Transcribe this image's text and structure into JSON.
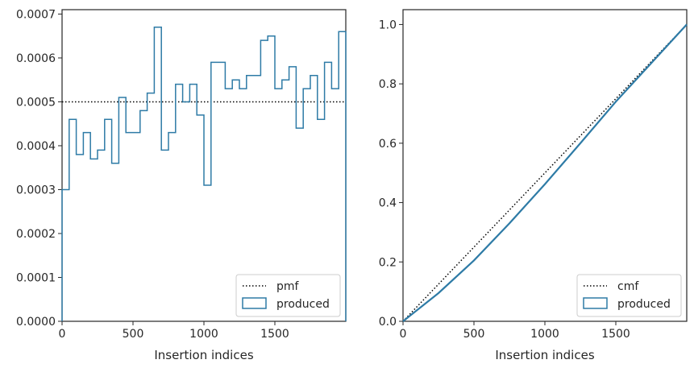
{
  "chart_data": [
    {
      "type": "step",
      "xlabel": "Insertion indices",
      "ylabel": "",
      "xlim": [
        0,
        2000
      ],
      "ylim": [
        0,
        0.00071
      ],
      "xticks": [
        0,
        500,
        1000,
        1500
      ],
      "xtick_labels": [
        "0",
        "500",
        "1000",
        "1500"
      ],
      "yticks": [
        0,
        0.0001,
        0.0002,
        0.0003,
        0.0004,
        0.0005,
        0.0006,
        0.0007
      ],
      "ytick_labels": [
        "0.0000",
        "0.0001",
        "0.0002",
        "0.0003",
        "0.0004",
        "0.0005",
        "0.0006",
        "0.0007"
      ],
      "legend_position": "lower-right",
      "series": [
        {
          "name": "pmf",
          "style": "dotted",
          "color": "#000000",
          "x": [
            0,
            2000
          ],
          "values": [
            0.0005,
            0.0005
          ]
        },
        {
          "name": "produced",
          "style": "step-histogram",
          "color": "#2e7ba6",
          "bin_width": 50,
          "bin_start": 0,
          "values": [
            0.0003,
            0.00046,
            0.00038,
            0.00043,
            0.00037,
            0.00039,
            0.00046,
            0.00036,
            0.00051,
            0.00043,
            0.00043,
            0.00048,
            0.00052,
            0.00067,
            0.00039,
            0.00043,
            0.00054,
            0.0005,
            0.00054,
            0.00047,
            0.00031,
            0.00059,
            0.00059,
            0.00053,
            0.00055,
            0.00053,
            0.00056,
            0.00056,
            0.00064,
            0.00065,
            0.00053,
            0.00055,
            0.00058,
            0.00044,
            0.00053,
            0.00056,
            0.00046,
            0.00059,
            0.00053,
            0.00066
          ]
        }
      ]
    },
    {
      "type": "line",
      "xlabel": "Insertion indices",
      "ylabel": "",
      "xlim": [
        0,
        2000
      ],
      "ylim": [
        0,
        1.05
      ],
      "xticks": [
        0,
        500,
        1000,
        1500
      ],
      "xtick_labels": [
        "0",
        "500",
        "1000",
        "1500"
      ],
      "yticks": [
        0,
        0.2,
        0.4,
        0.6,
        0.8,
        1.0
      ],
      "ytick_labels": [
        "0.0",
        "0.2",
        "0.4",
        "0.6",
        "0.8",
        "1.0"
      ],
      "legend_position": "lower-right",
      "series": [
        {
          "name": "cmf",
          "style": "dotted",
          "color": "#000000",
          "x": [
            0,
            2000
          ],
          "values": [
            0,
            1.0
          ]
        },
        {
          "name": "produced",
          "style": "solid",
          "color": "#2e7ba6",
          "x": [
            0,
            250,
            500,
            750,
            1000,
            1250,
            1500,
            1750,
            2000
          ],
          "values": [
            0,
            0.095,
            0.205,
            0.33,
            0.462,
            0.6,
            0.74,
            0.87,
            1.0
          ]
        }
      ]
    }
  ]
}
